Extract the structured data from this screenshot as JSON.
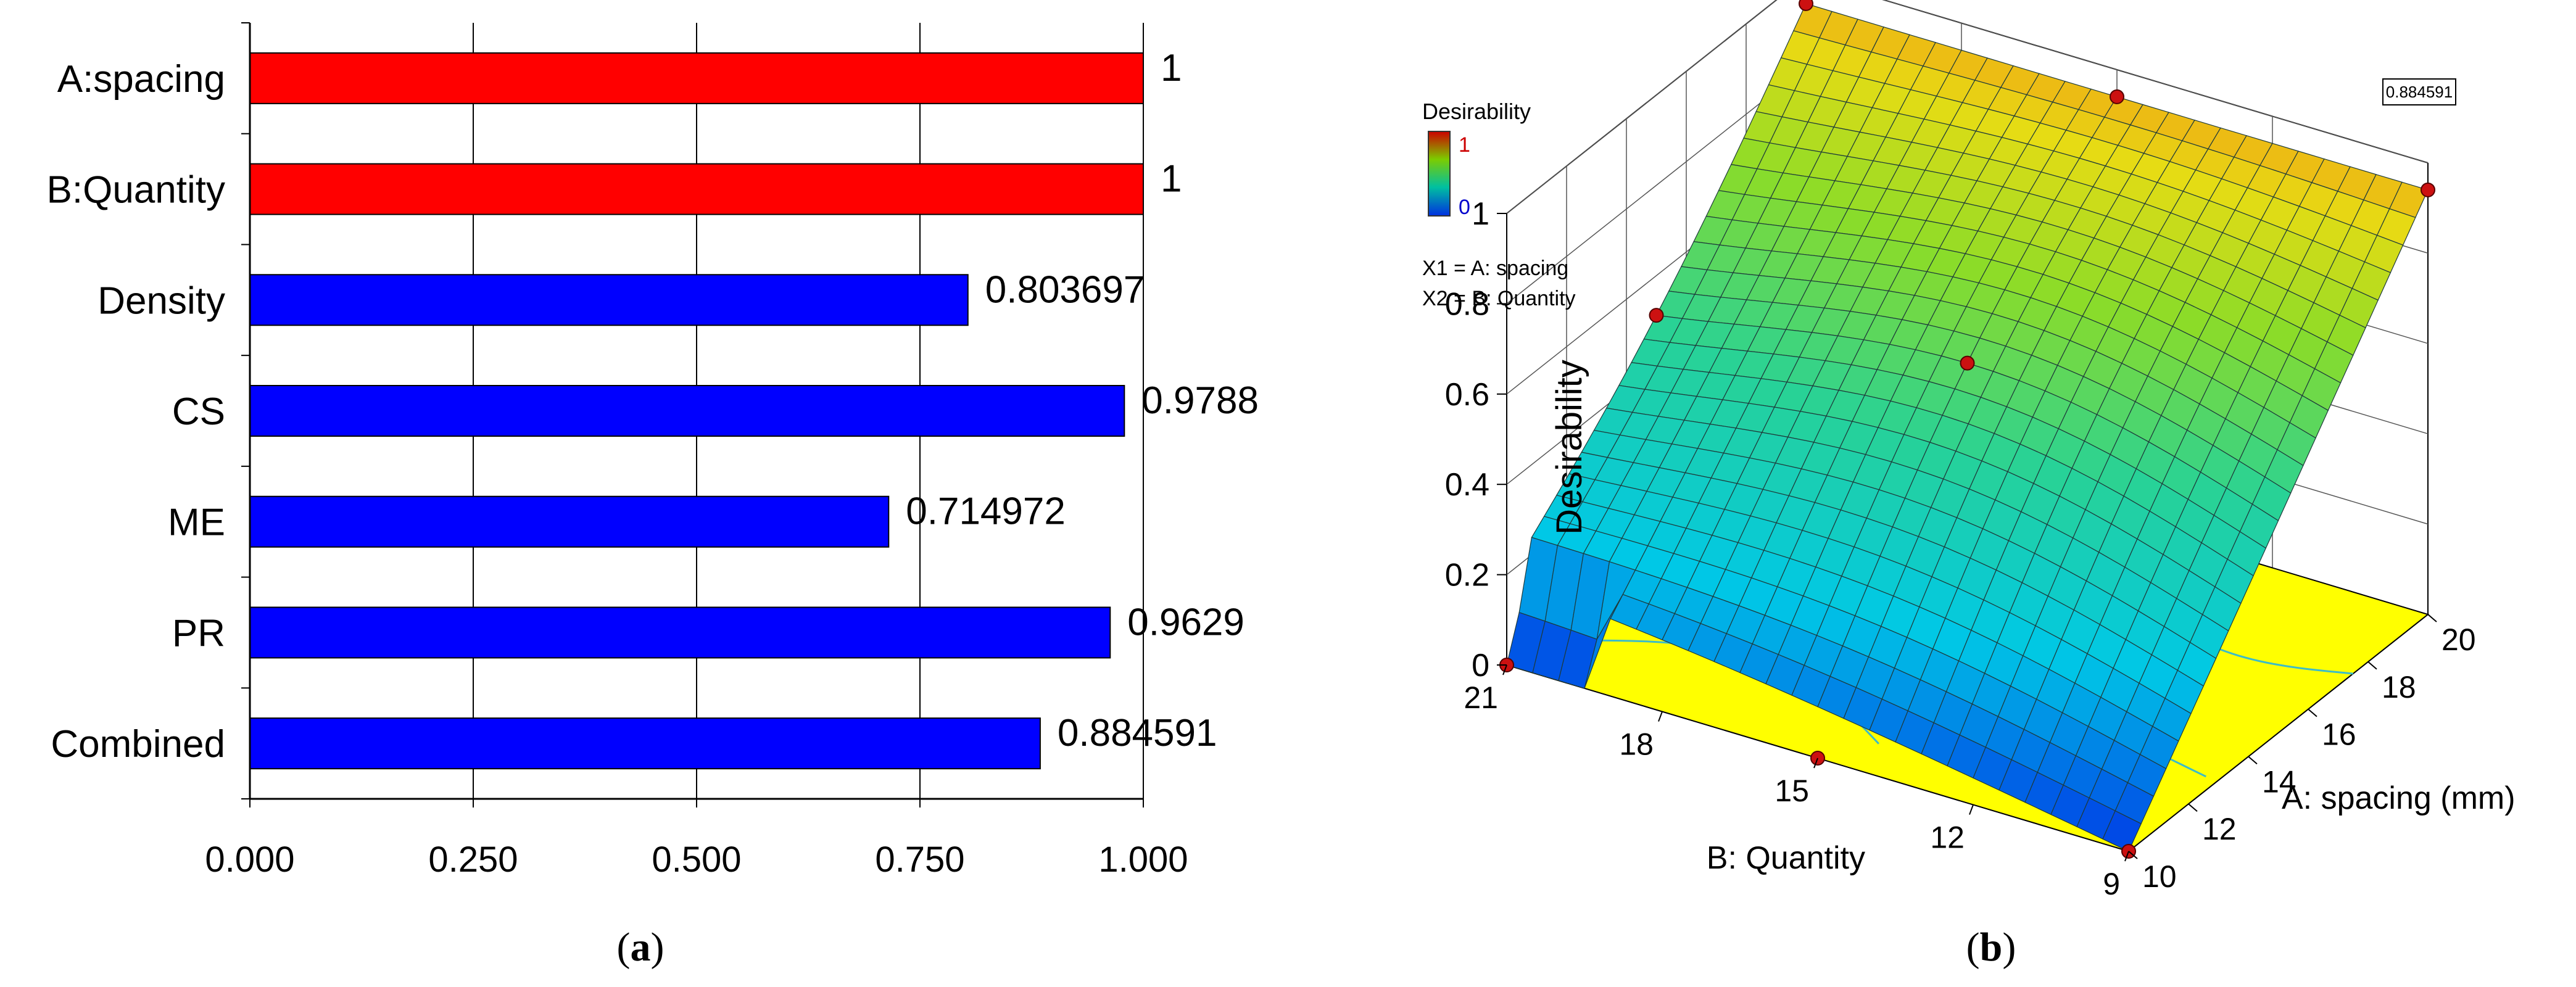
{
  "chart_data": [
    {
      "type": "bar",
      "panel_label": "(a)",
      "panel_letter": "a",
      "orientation": "horizontal",
      "categories": [
        "A:spacing",
        "B:Quantity",
        "Density",
        "CS",
        "ME",
        "PR",
        "Combined"
      ],
      "values": [
        1,
        1,
        0.803697,
        0.9788,
        0.714972,
        0.9629,
        0.884591
      ],
      "value_labels": [
        "1",
        "1",
        "0.803697",
        "0.9788",
        "0.714972",
        "0.9629",
        "0.884591"
      ],
      "bar_colors": [
        "#ff0000",
        "#ff0000",
        "#0000ff",
        "#0000ff",
        "#0000ff",
        "#0000ff",
        "#0000ff"
      ],
      "xlim": [
        0,
        1
      ],
      "xticks": [
        0,
        0.25,
        0.5,
        0.75,
        1
      ],
      "xtick_labels": [
        "0.000",
        "0.250",
        "0.500",
        "0.750",
        "1.000"
      ],
      "grid": true,
      "title": "",
      "xlabel": "",
      "ylabel": ""
    },
    {
      "type": "surface3d",
      "panel_label": "(b)",
      "panel_letter": "b",
      "z_label": "Desirability",
      "z_ticks": [
        "0",
        "0.2",
        "0.4",
        "0.6",
        "0.8",
        "1"
      ],
      "zlim": [
        0,
        1
      ],
      "x_label": "A: spacing (mm)",
      "x_ticks": [
        "10",
        "12",
        "14",
        "16",
        "18",
        "20"
      ],
      "xlim": [
        10,
        20
      ],
      "y_label": "B: Quantity",
      "y_ticks": [
        "9",
        "12",
        "15",
        "18",
        "21"
      ],
      "ylim": [
        9,
        21
      ],
      "legend_title": "Desirability",
      "legend_max": "1",
      "legend_min": "0",
      "legend_lines": [
        "X1 = A: spacing",
        "X2 = B: Quantity"
      ],
      "annotation_value": "0.884591",
      "surface_color_low": "#0000ff",
      "surface_color_high": "#ff0000",
      "floor_color": "#ffff00"
    }
  ]
}
